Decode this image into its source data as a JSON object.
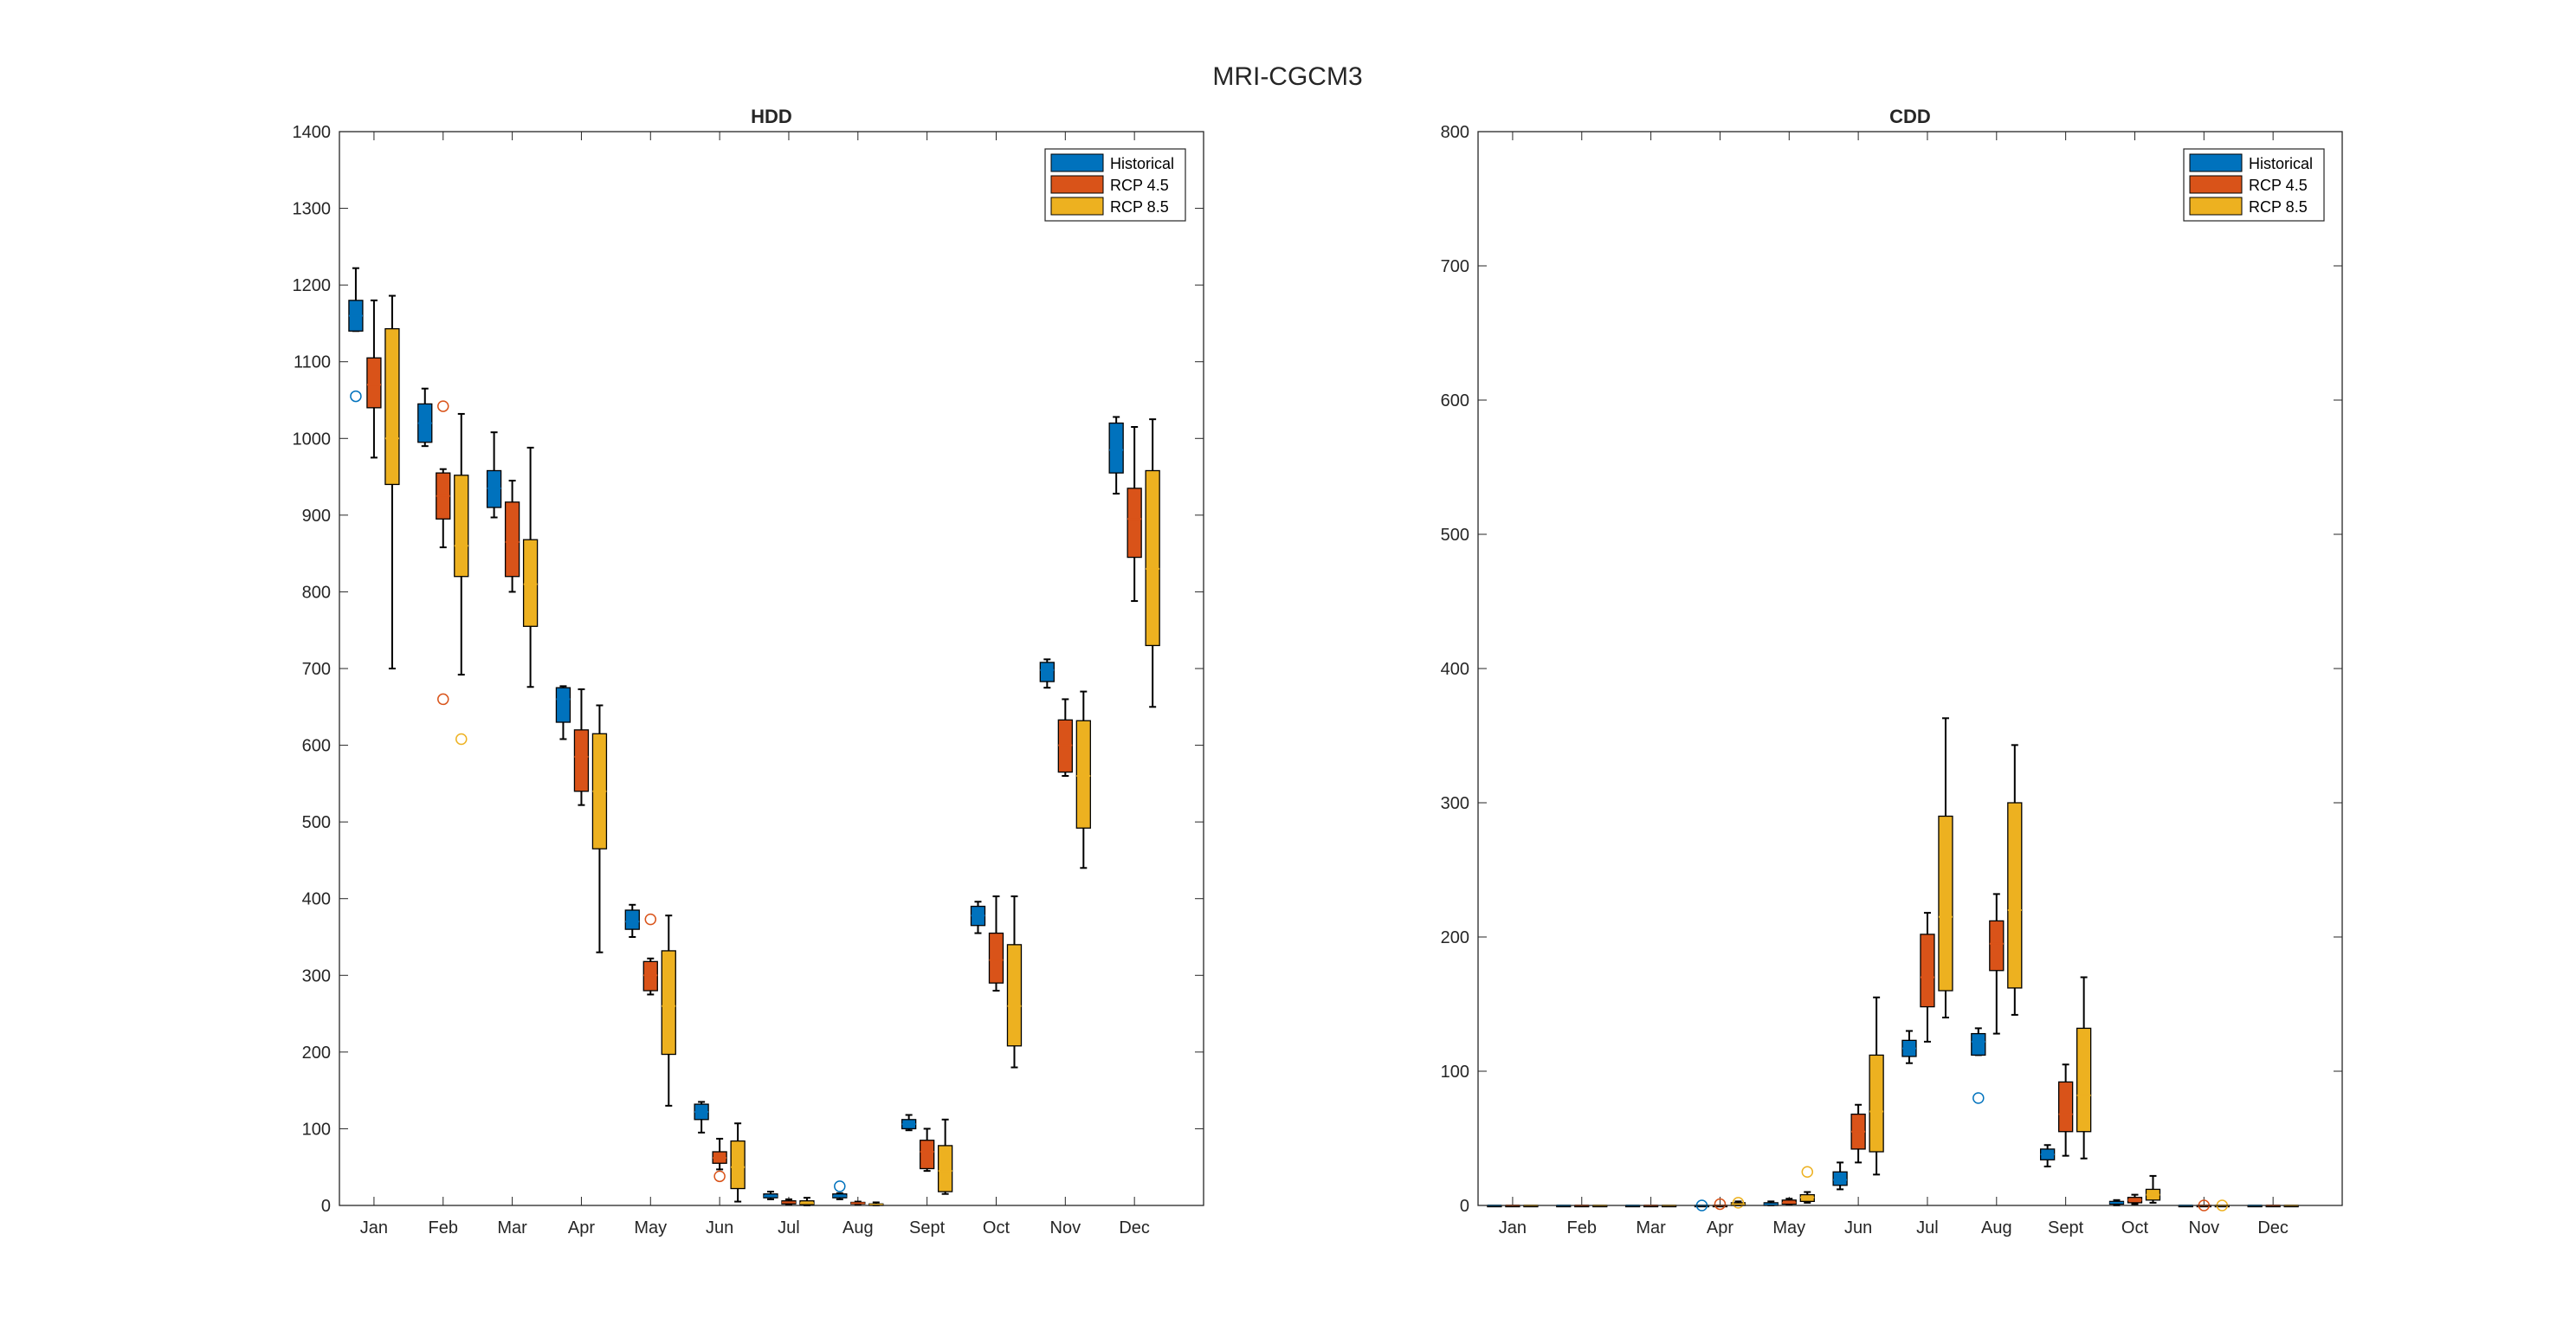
{
  "figure_title": "MRI-CGCM3",
  "colors": {
    "historical": "#0072BD",
    "rcp45": "#D95319",
    "rcp85": "#EDB120",
    "axis": "#262626",
    "whisker": "#000000"
  },
  "chart_data": [
    {
      "type": "box",
      "title": "HDD",
      "xlabel": "",
      "ylabel": "",
      "ylim": [
        0,
        1400
      ],
      "yticks": [
        0,
        100,
        200,
        300,
        400,
        500,
        600,
        700,
        800,
        900,
        1000,
        1100,
        1200,
        1300,
        1400
      ],
      "grid": false,
      "legend_position": "top-right",
      "categories": [
        "Jan",
        "Feb",
        "Mar",
        "Apr",
        "May",
        "Jun",
        "Jul",
        "Aug",
        "Sept",
        "Oct",
        "Nov",
        "Dec"
      ],
      "series": [
        {
          "name": "Historical",
          "boxes": [
            {
              "low": 1140,
              "q1": 1140,
              "median": 1160,
              "q3": 1180,
              "high": 1222,
              "outliers": [
                1055
              ]
            },
            {
              "low": 990,
              "q1": 995,
              "median": 1020,
              "q3": 1045,
              "high": 1065,
              "outliers": []
            },
            {
              "low": 897,
              "q1": 910,
              "median": 935,
              "q3": 958,
              "high": 1008,
              "outliers": []
            },
            {
              "low": 608,
              "q1": 630,
              "median": 660,
              "q3": 675,
              "high": 677,
              "outliers": []
            },
            {
              "low": 350,
              "q1": 360,
              "median": 370,
              "q3": 385,
              "high": 392,
              "outliers": []
            },
            {
              "low": 95,
              "q1": 112,
              "median": 122,
              "q3": 132,
              "high": 135,
              "outliers": []
            },
            {
              "low": 8,
              "q1": 10,
              "median": 12,
              "q3": 15,
              "high": 18,
              "outliers": []
            },
            {
              "low": 8,
              "q1": 10,
              "median": 12,
              "q3": 15,
              "high": 16,
              "outliers": [
                25
              ]
            },
            {
              "low": 98,
              "q1": 100,
              "median": 106,
              "q3": 112,
              "high": 118,
              "outliers": []
            },
            {
              "low": 355,
              "q1": 365,
              "median": 378,
              "q3": 390,
              "high": 396,
              "outliers": []
            },
            {
              "low": 675,
              "q1": 683,
              "median": 698,
              "q3": 708,
              "high": 712,
              "outliers": []
            },
            {
              "low": 928,
              "q1": 955,
              "median": 985,
              "q3": 1020,
              "high": 1028,
              "outliers": []
            }
          ]
        },
        {
          "name": "RCP 4.5",
          "boxes": [
            {
              "low": 975,
              "q1": 1040,
              "median": 1070,
              "q3": 1105,
              "high": 1180,
              "outliers": []
            },
            {
              "low": 858,
              "q1": 895,
              "median": 925,
              "q3": 955,
              "high": 960,
              "outliers": [
                660,
                1042
              ]
            },
            {
              "low": 800,
              "q1": 820,
              "median": 865,
              "q3": 917,
              "high": 945,
              "outliers": []
            },
            {
              "low": 522,
              "q1": 540,
              "median": 585,
              "q3": 620,
              "high": 673,
              "outliers": []
            },
            {
              "low": 275,
              "q1": 280,
              "median": 300,
              "q3": 318,
              "high": 322,
              "outliers": [
                373
              ]
            },
            {
              "low": 47,
              "q1": 55,
              "median": 62,
              "q3": 70,
              "high": 87,
              "outliers": [
                38
              ]
            },
            {
              "low": 1,
              "q1": 2,
              "median": 4,
              "q3": 6,
              "high": 8,
              "outliers": []
            },
            {
              "low": 1,
              "q1": 2,
              "median": 3,
              "q3": 4,
              "high": 5,
              "outliers": []
            },
            {
              "low": 45,
              "q1": 48,
              "median": 70,
              "q3": 85,
              "high": 100,
              "outliers": []
            },
            {
              "low": 280,
              "q1": 290,
              "median": 320,
              "q3": 355,
              "high": 403,
              "outliers": []
            },
            {
              "low": 560,
              "q1": 565,
              "median": 600,
              "q3": 633,
              "high": 660,
              "outliers": []
            },
            {
              "low": 788,
              "q1": 845,
              "median": 895,
              "q3": 935,
              "high": 1015,
              "outliers": []
            }
          ]
        },
        {
          "name": "RCP 8.5",
          "boxes": [
            {
              "low": 700,
              "q1": 940,
              "median": 1000,
              "q3": 1143,
              "high": 1186,
              "outliers": []
            },
            {
              "low": 692,
              "q1": 820,
              "median": 860,
              "q3": 952,
              "high": 1032,
              "outliers": [
                608
              ]
            },
            {
              "low": 676,
              "q1": 755,
              "median": 810,
              "q3": 868,
              "high": 988,
              "outliers": []
            },
            {
              "low": 330,
              "q1": 465,
              "median": 540,
              "q3": 615,
              "high": 652,
              "outliers": []
            },
            {
              "low": 130,
              "q1": 197,
              "median": 260,
              "q3": 332,
              "high": 378,
              "outliers": []
            },
            {
              "low": 5,
              "q1": 22,
              "median": 50,
              "q3": 84,
              "high": 107,
              "outliers": []
            },
            {
              "low": 0,
              "q1": 1,
              "median": 3,
              "q3": 6,
              "high": 10,
              "outliers": []
            },
            {
              "low": 0,
              "q1": 0,
              "median": 1,
              "q3": 2,
              "high": 4,
              "outliers": []
            },
            {
              "low": 15,
              "q1": 18,
              "median": 45,
              "q3": 78,
              "high": 112,
              "outliers": []
            },
            {
              "low": 180,
              "q1": 208,
              "median": 260,
              "q3": 340,
              "high": 403,
              "outliers": []
            },
            {
              "low": 440,
              "q1": 492,
              "median": 560,
              "q3": 632,
              "high": 670,
              "outliers": []
            },
            {
              "low": 650,
              "q1": 730,
              "median": 830,
              "q3": 958,
              "high": 1025,
              "outliers": []
            }
          ]
        }
      ]
    },
    {
      "type": "box",
      "title": "CDD",
      "xlabel": "",
      "ylabel": "",
      "ylim": [
        0,
        800
      ],
      "yticks": [
        0,
        100,
        200,
        300,
        400,
        500,
        600,
        700,
        800
      ],
      "grid": false,
      "legend_position": "top-right",
      "categories": [
        "Jan",
        "Feb",
        "Mar",
        "Apr",
        "May",
        "Jun",
        "Jul",
        "Aug",
        "Sept",
        "Oct",
        "Nov",
        "Dec"
      ],
      "series": [
        {
          "name": "Historical",
          "boxes": [
            {
              "low": 0,
              "q1": 0,
              "median": 0,
              "q3": 0,
              "high": 0,
              "outliers": []
            },
            {
              "low": 0,
              "q1": 0,
              "median": 0,
              "q3": 0,
              "high": 0,
              "outliers": []
            },
            {
              "low": 0,
              "q1": 0,
              "median": 0,
              "q3": 0,
              "high": 0,
              "outliers": []
            },
            {
              "low": 0,
              "q1": 0,
              "median": 0,
              "q3": 0,
              "high": 0,
              "outliers": [
                0
              ]
            },
            {
              "low": 0,
              "q1": 0,
              "median": 1,
              "q3": 2,
              "high": 3,
              "outliers": []
            },
            {
              "low": 12,
              "q1": 15,
              "median": 19,
              "q3": 25,
              "high": 32,
              "outliers": []
            },
            {
              "low": 106,
              "q1": 111,
              "median": 117,
              "q3": 123,
              "high": 130,
              "outliers": []
            },
            {
              "low": 112,
              "q1": 112,
              "median": 122,
              "q3": 128,
              "high": 132,
              "outliers": [
                80
              ]
            },
            {
              "low": 29,
              "q1": 34,
              "median": 38,
              "q3": 42,
              "high": 45,
              "outliers": []
            },
            {
              "low": 0,
              "q1": 1,
              "median": 2,
              "q3": 3,
              "high": 4,
              "outliers": []
            },
            {
              "low": 0,
              "q1": 0,
              "median": 0,
              "q3": 0,
              "high": 0,
              "outliers": []
            },
            {
              "low": 0,
              "q1": 0,
              "median": 0,
              "q3": 0,
              "high": 0,
              "outliers": []
            }
          ]
        },
        {
          "name": "RCP 4.5",
          "boxes": [
            {
              "low": 0,
              "q1": 0,
              "median": 0,
              "q3": 0,
              "high": 0,
              "outliers": []
            },
            {
              "low": 0,
              "q1": 0,
              "median": 0,
              "q3": 0,
              "high": 0,
              "outliers": []
            },
            {
              "low": 0,
              "q1": 0,
              "median": 0,
              "q3": 0,
              "high": 0,
              "outliers": []
            },
            {
              "low": 0,
              "q1": 0,
              "median": 0,
              "q3": 0,
              "high": 0,
              "outliers": [
                1
              ]
            },
            {
              "low": 1,
              "q1": 1,
              "median": 2,
              "q3": 4,
              "high": 5,
              "outliers": []
            },
            {
              "low": 32,
              "q1": 42,
              "median": 55,
              "q3": 68,
              "high": 75,
              "outliers": []
            },
            {
              "low": 122,
              "q1": 148,
              "median": 170,
              "q3": 202,
              "high": 218,
              "outliers": []
            },
            {
              "low": 128,
              "q1": 175,
              "median": 195,
              "q3": 212,
              "high": 232,
              "outliers": []
            },
            {
              "low": 37,
              "q1": 55,
              "median": 68,
              "q3": 92,
              "high": 105,
              "outliers": []
            },
            {
              "low": 1,
              "q1": 2,
              "median": 4,
              "q3": 6,
              "high": 8,
              "outliers": []
            },
            {
              "low": 0,
              "q1": 0,
              "median": 0,
              "q3": 0,
              "high": 0,
              "outliers": [
                0
              ]
            },
            {
              "low": 0,
              "q1": 0,
              "median": 0,
              "q3": 0,
              "high": 0,
              "outliers": []
            }
          ]
        },
        {
          "name": "RCP 8.5",
          "boxes": [
            {
              "low": 0,
              "q1": 0,
              "median": 0,
              "q3": 0,
              "high": 0,
              "outliers": []
            },
            {
              "low": 0,
              "q1": 0,
              "median": 0,
              "q3": 0,
              "high": 0,
              "outliers": []
            },
            {
              "low": 0,
              "q1": 0,
              "median": 0,
              "q3": 0,
              "high": 0,
              "outliers": []
            },
            {
              "low": 0,
              "q1": 0,
              "median": 1,
              "q3": 2,
              "high": 3,
              "outliers": [
                2
              ]
            },
            {
              "low": 2,
              "q1": 3,
              "median": 6,
              "q3": 8,
              "high": 10,
              "outliers": [
                25
              ]
            },
            {
              "low": 23,
              "q1": 40,
              "median": 70,
              "q3": 112,
              "high": 155,
              "outliers": []
            },
            {
              "low": 140,
              "q1": 160,
              "median": 215,
              "q3": 290,
              "high": 363,
              "outliers": []
            },
            {
              "low": 142,
              "q1": 162,
              "median": 220,
              "q3": 300,
              "high": 343,
              "outliers": []
            },
            {
              "low": 35,
              "q1": 55,
              "median": 82,
              "q3": 132,
              "high": 170,
              "outliers": []
            },
            {
              "low": 2,
              "q1": 4,
              "median": 8,
              "q3": 12,
              "high": 22,
              "outliers": []
            },
            {
              "low": 0,
              "q1": 0,
              "median": 0,
              "q3": 0,
              "high": 0,
              "outliers": [
                0
              ]
            },
            {
              "low": 0,
              "q1": 0,
              "median": 0,
              "q3": 0,
              "high": 0,
              "outliers": []
            }
          ]
        }
      ]
    }
  ]
}
